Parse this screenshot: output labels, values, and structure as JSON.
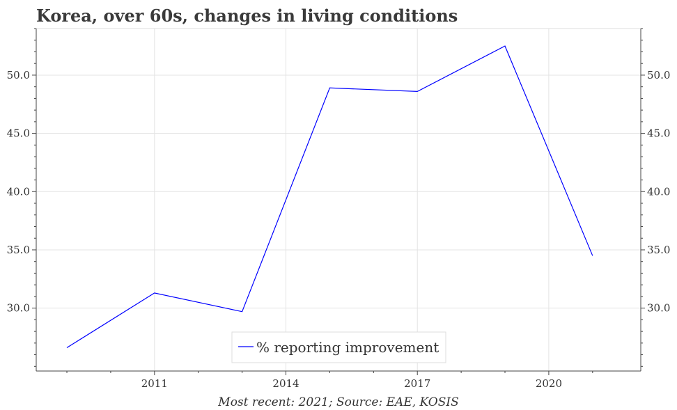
{
  "chart_data": {
    "type": "line",
    "title": "Korea, over 60s, changes in living conditions",
    "footer": "Most recent:  2021; Source: EAE, KOSIS",
    "xlabel": "",
    "ylabel": "",
    "x": [
      2009,
      2011,
      2013,
      2015,
      2017,
      2019,
      2021
    ],
    "series": [
      {
        "name": "% reporting improvement",
        "color": "#0000ff",
        "values": [
          26.6,
          31.3,
          29.7,
          48.9,
          48.6,
          52.5,
          34.5
        ]
      }
    ],
    "xlim": [
      2008.3,
      2022.1
    ],
    "ylim": [
      24.6,
      54.0
    ],
    "x_ticks": [
      2011,
      2014,
      2017,
      2020
    ],
    "x_tick_labels": [
      "2011",
      "2014",
      "2017",
      "2020"
    ],
    "x_minor_ticks": [
      2009,
      2010,
      2012,
      2013,
      2015,
      2016,
      2018,
      2019,
      2021
    ],
    "y_ticks": [
      30.0,
      35.0,
      40.0,
      45.0,
      50.0
    ],
    "y_tick_labels": [
      "30.0",
      "35.0",
      "40.0",
      "45.0",
      "50.0"
    ],
    "grid": true,
    "legend_position": "bottom-center"
  }
}
